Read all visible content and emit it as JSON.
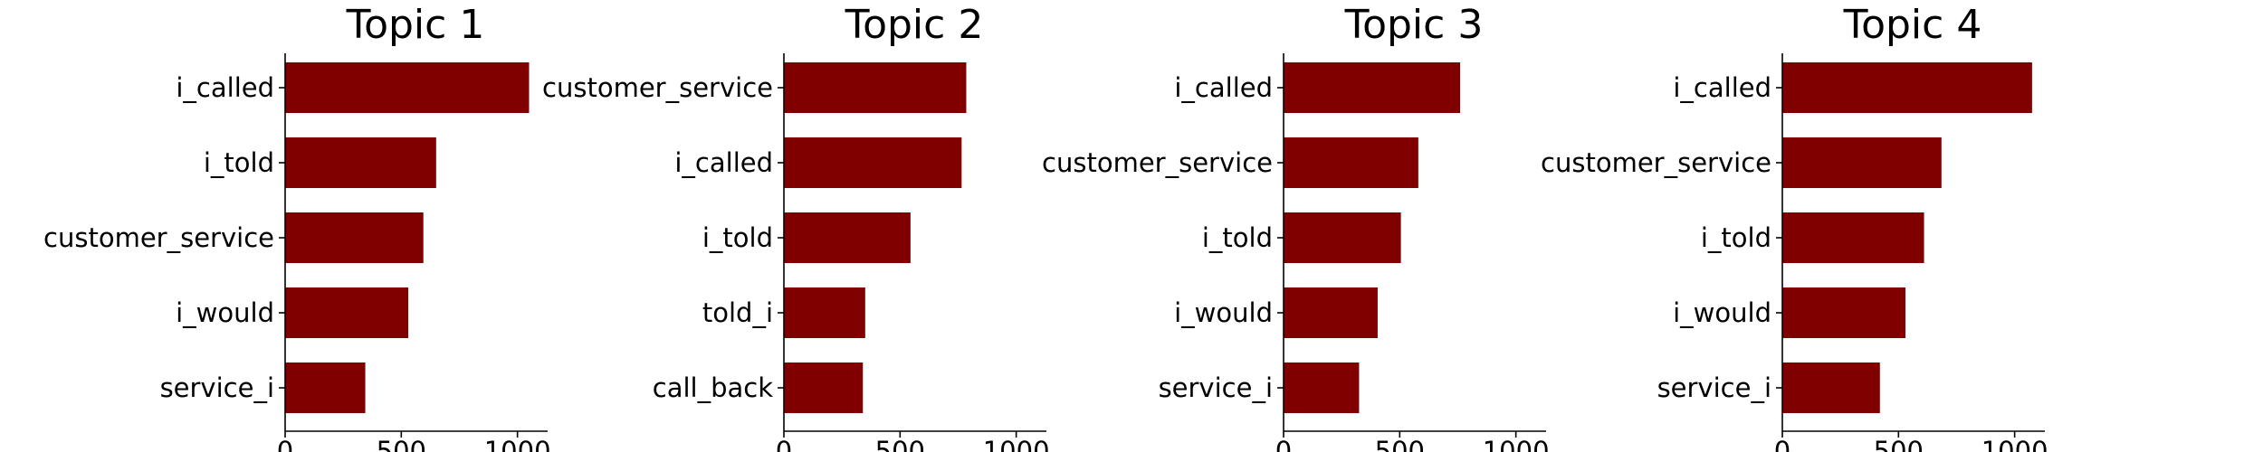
{
  "colors": {
    "bar": "#800000",
    "text": "#000000",
    "background": "#ffffff"
  },
  "chart_data": [
    {
      "type": "bar",
      "orientation": "horizontal",
      "title": "Topic 1",
      "categories": [
        "i_called",
        "i_told",
        "customer_service",
        "i_would",
        "service_i"
      ],
      "values": [
        1050,
        650,
        595,
        530,
        345
      ],
      "xticks": [
        0,
        500,
        1000
      ],
      "xlim": [
        0,
        1130
      ],
      "grid": false
    },
    {
      "type": "bar",
      "orientation": "horizontal",
      "title": "Topic 2",
      "categories": [
        "customer_service",
        "i_called",
        "i_told",
        "told_i",
        "call_back"
      ],
      "values": [
        785,
        765,
        545,
        350,
        340
      ],
      "xticks": [
        0,
        500,
        1000
      ],
      "xlim": [
        0,
        1130
      ],
      "grid": false
    },
    {
      "type": "bar",
      "orientation": "horizontal",
      "title": "Topic 3",
      "categories": [
        "i_called",
        "customer_service",
        "i_told",
        "i_would",
        "service_i"
      ],
      "values": [
        760,
        580,
        505,
        405,
        325
      ],
      "xticks": [
        0,
        500,
        1000
      ],
      "xlim": [
        0,
        1130
      ],
      "grid": false
    },
    {
      "type": "bar",
      "orientation": "horizontal",
      "title": "Topic 4",
      "categories": [
        "i_called",
        "customer_service",
        "i_told",
        "i_would",
        "service_i"
      ],
      "values": [
        1075,
        685,
        610,
        530,
        420
      ],
      "xticks": [
        0,
        500,
        1000
      ],
      "xlim": [
        0,
        1130
      ],
      "grid": false
    }
  ]
}
